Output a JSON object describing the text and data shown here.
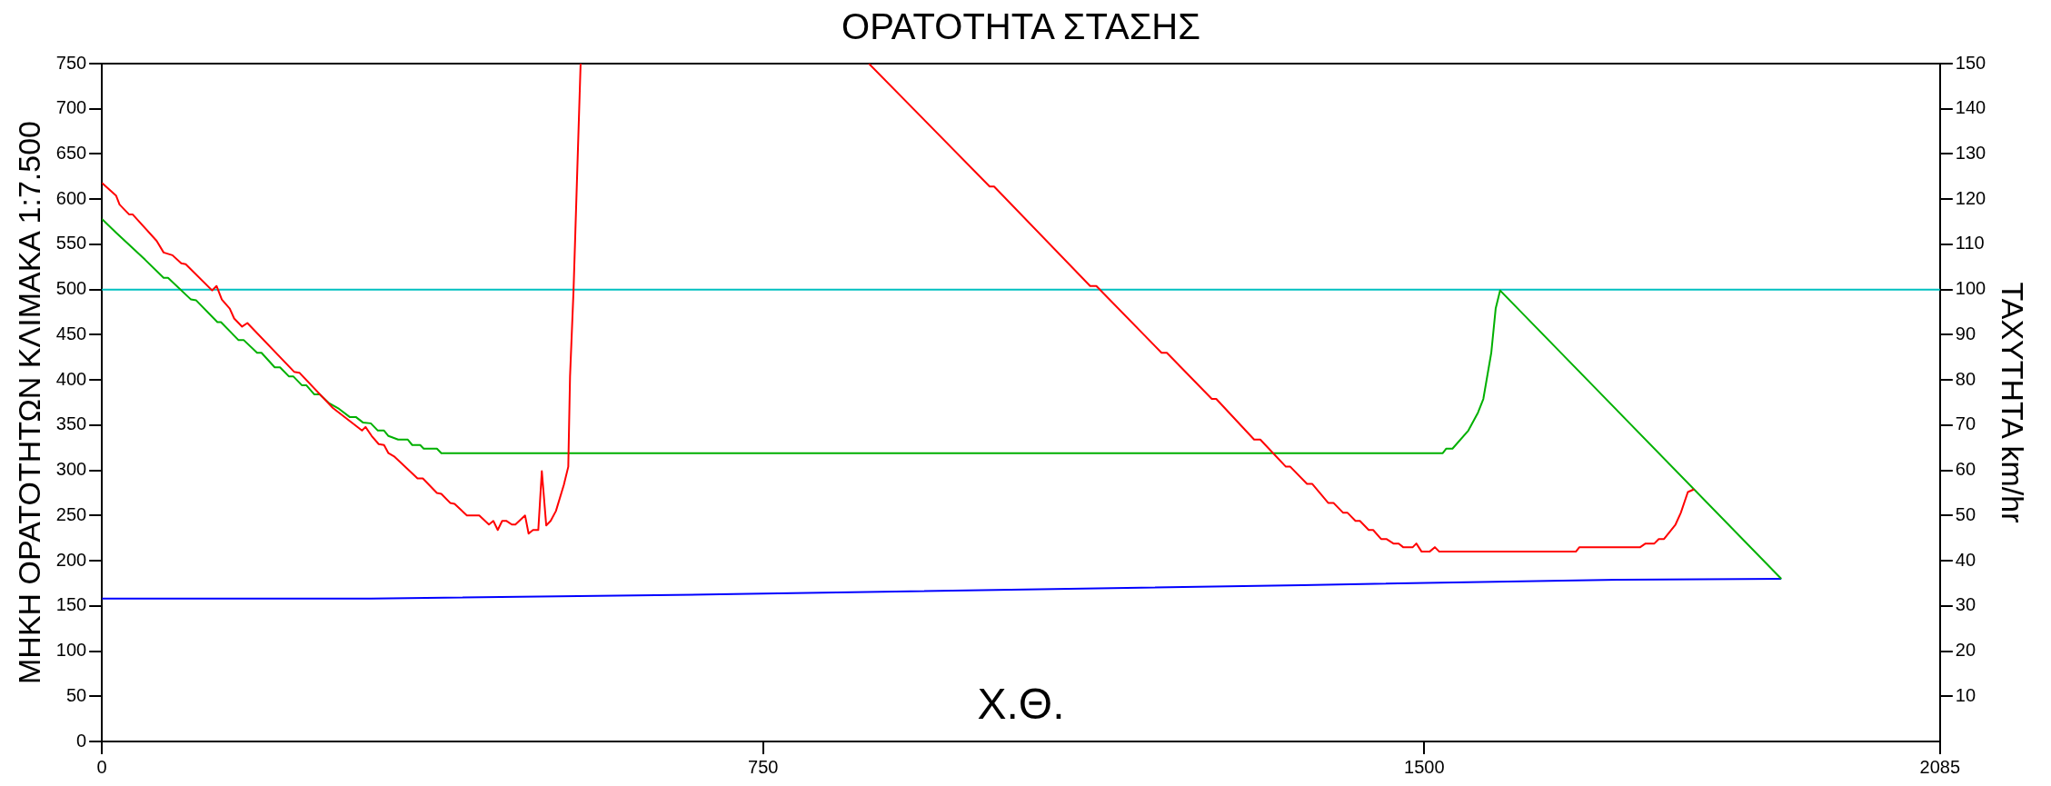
{
  "chart_data": {
    "type": "line",
    "title": "ΟΡΑΤΟΤΗΤΑ ΣΤΑΣΗΣ",
    "xlabel": "Χ.Θ.",
    "ylabel": "ΜΗΚΗ ΟΡΑΤΟΤΗΤΩΝ ΚΛΙΜΑΚΑ 1:7.500",
    "y2label": "ΤΑΧΥΤΗΤΑ km/hr",
    "xlim": [
      0,
      2085
    ],
    "xticks": [
      0,
      750,
      1500,
      2085
    ],
    "ylim": [
      0,
      750
    ],
    "yticks": [
      0,
      50,
      100,
      150,
      200,
      250,
      300,
      350,
      400,
      450,
      500,
      550,
      600,
      650,
      700,
      750
    ],
    "y2lim": [
      0,
      150
    ],
    "y2ticks": [
      10,
      20,
      30,
      40,
      50,
      60,
      70,
      80,
      90,
      100,
      110,
      120,
      130,
      140,
      150
    ],
    "grid": false,
    "legend": false,
    "marker": "none",
    "line_style": "solid",
    "ref_lines": [
      {
        "axis": "y",
        "value": 500,
        "color": "#00c0c0"
      }
    ],
    "series": [
      {
        "color": "#ff0000",
        "x": [
          0,
          16,
          20,
          31,
          35,
          62,
          70,
          80,
          90,
          95,
          125,
          130,
          136,
          145,
          150,
          159,
          165,
          218,
          224,
          262,
          295,
          299,
          306,
          314,
          320,
          325,
          332,
          358,
          364,
          380,
          385,
          395,
          400,
          414,
          428,
          439,
          444,
          449,
          454,
          459,
          465,
          469,
          480,
          484,
          489,
          495,
          499,
          504,
          509,
          515,
          524,
          529,
          531,
          535,
          543,
          700,
          870,
          1007,
          1012,
          1121,
          1128,
          1202,
          1208,
          1259,
          1264,
          1307,
          1314,
          1343,
          1348,
          1367,
          1373,
          1391,
          1397,
          1408,
          1413,
          1422,
          1427,
          1437,
          1442,
          1451,
          1457,
          1465,
          1471,
          1476,
          1487,
          1491,
          1497,
          1506,
          1512,
          1517,
          1672,
          1676,
          1745,
          1751,
          1761,
          1766,
          1772,
          1785,
          1791,
          1799,
          1806
        ],
        "values": [
          618,
          604,
          594,
          583,
          583,
          554,
          541,
          538,
          529,
          528,
          499,
          504,
          489,
          479,
          468,
          459,
          463,
          409,
          408,
          369,
          344,
          348,
          338,
          329,
          328,
          319,
          315,
          291,
          291,
          275,
          274,
          264,
          263,
          250,
          250,
          240,
          244,
          234,
          244,
          244,
          240,
          240,
          250,
          230,
          234,
          234,
          299,
          239,
          244,
          255,
          284,
          304,
          404,
          500,
          750,
          null,
          750,
          614,
          614,
          504,
          504,
          430,
          430,
          379,
          379,
          334,
          334,
          304,
          304,
          285,
          285,
          264,
          264,
          253,
          253,
          244,
          244,
          234,
          234,
          224,
          224,
          219,
          219,
          215,
          215,
          219,
          210,
          210,
          215,
          210,
          210,
          215,
          215,
          219,
          219,
          224,
          224,
          240,
          253,
          276,
          279
        ]
      },
      {
        "color": "#00b000",
        "x": [
          0,
          16,
          49,
          70,
          75,
          101,
          107,
          131,
          135,
          155,
          161,
          176,
          181,
          196,
          202,
          212,
          217,
          227,
          232,
          241,
          247,
          258,
          269,
          281,
          288,
          296,
          305,
          313,
          320,
          325,
          336,
          347,
          352,
          361,
          365,
          380,
          385,
          1521,
          1525,
          1532,
          1550,
          1561,
          1567,
          1576,
          1581,
          1586,
          1905
        ],
        "values": [
          578,
          563,
          533,
          513,
          513,
          489,
          488,
          464,
          464,
          444,
          444,
          430,
          430,
          414,
          414,
          404,
          404,
          394,
          394,
          384,
          384,
          374,
          368,
          359,
          359,
          353,
          352,
          344,
          344,
          338,
          334,
          334,
          328,
          328,
          324,
          324,
          319,
          319,
          324,
          324,
          344,
          364,
          379,
          430,
          479,
          499,
          180
        ]
      },
      {
        "color": "#0000ff",
        "x": [
          0,
          305,
          717,
          1361,
          1723,
          1905
        ],
        "values": [
          158,
          158,
          163,
          173,
          179,
          180
        ]
      }
    ]
  }
}
